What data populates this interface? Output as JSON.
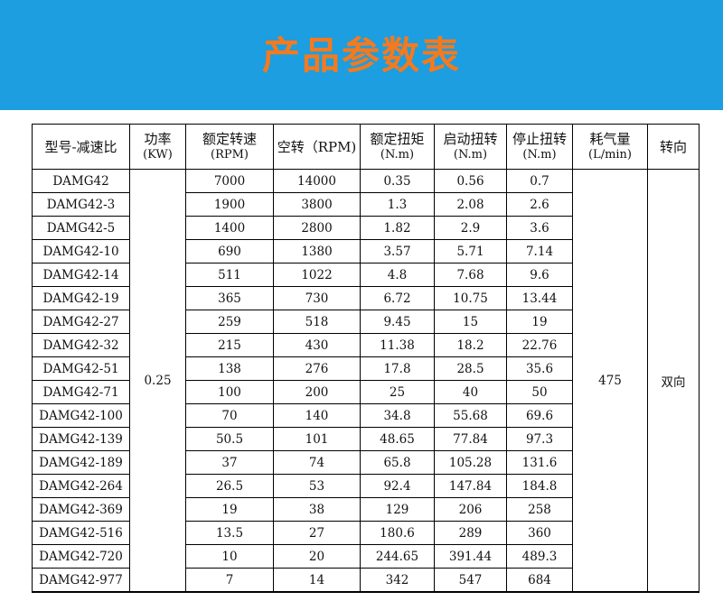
{
  "title": "产品参数表",
  "colors": {
    "banner": "#1c9ee0",
    "title": "#f47a1f"
  },
  "table": {
    "headers": [
      {
        "label": "型号-减速比",
        "unit": ""
      },
      {
        "label": "功率",
        "unit": "(KW)"
      },
      {
        "label": "额定转速",
        "unit": "(RPM)"
      },
      {
        "label": "空转（RPM)",
        "unit": ""
      },
      {
        "label": "额定扭矩",
        "unit": "(N.m)"
      },
      {
        "label": "启动扭转",
        "unit": "(N.m)"
      },
      {
        "label": "停止扭转",
        "unit": "(N.m)"
      },
      {
        "label": "耗气量",
        "unit": "(L/min)"
      },
      {
        "label": "转向",
        "unit": ""
      }
    ],
    "power": "0.25",
    "air_consumption": "475",
    "direction": "双向",
    "rows": [
      [
        "DAMG42",
        "7000",
        "14000",
        "0.35",
        "0.56",
        "0.7"
      ],
      [
        "DAMG42-3",
        "1900",
        "3800",
        "1.3",
        "2.08",
        "2.6"
      ],
      [
        "DAMG42-5",
        "1400",
        "2800",
        "1.82",
        "2.9",
        "3.6"
      ],
      [
        "DAMG42-10",
        "690",
        "1380",
        "3.57",
        "5.71",
        "7.14"
      ],
      [
        "DAMG42-14",
        "511",
        "1022",
        "4.8",
        "7.68",
        "9.6"
      ],
      [
        "DAMG42-19",
        "365",
        "730",
        "6.72",
        "10.75",
        "13.44"
      ],
      [
        "DAMG42-27",
        "259",
        "518",
        "9.45",
        "15",
        "19"
      ],
      [
        "DAMG42-32",
        "215",
        "430",
        "11.38",
        "18.2",
        "22.76"
      ],
      [
        "DAMG42-51",
        "138",
        "276",
        "17.8",
        "28.5",
        "35.6"
      ],
      [
        "DAMG42-71",
        "100",
        "200",
        "25",
        "40",
        "50"
      ],
      [
        "DAMG42-100",
        "70",
        "140",
        "34.8",
        "55.68",
        "69.6"
      ],
      [
        "DAMG42-139",
        "50.5",
        "101",
        "48.65",
        "77.84",
        "97.3"
      ],
      [
        "DAMG42-189",
        "37",
        "74",
        "65.8",
        "105.28",
        "131.6"
      ],
      [
        "DAMG42-264",
        "26.5",
        "53",
        "92.4",
        "147.84",
        "184.8"
      ],
      [
        "DAMG42-369",
        "19",
        "38",
        "129",
        "206",
        "258"
      ],
      [
        "DAMG42-516",
        "13.5",
        "27",
        "180.6",
        "289",
        "360"
      ],
      [
        "DAMG42-720",
        "10",
        "20",
        "244.65",
        "391.44",
        "489.3"
      ],
      [
        "DAMG42-977",
        "7",
        "14",
        "342",
        "547",
        "684"
      ]
    ]
  }
}
